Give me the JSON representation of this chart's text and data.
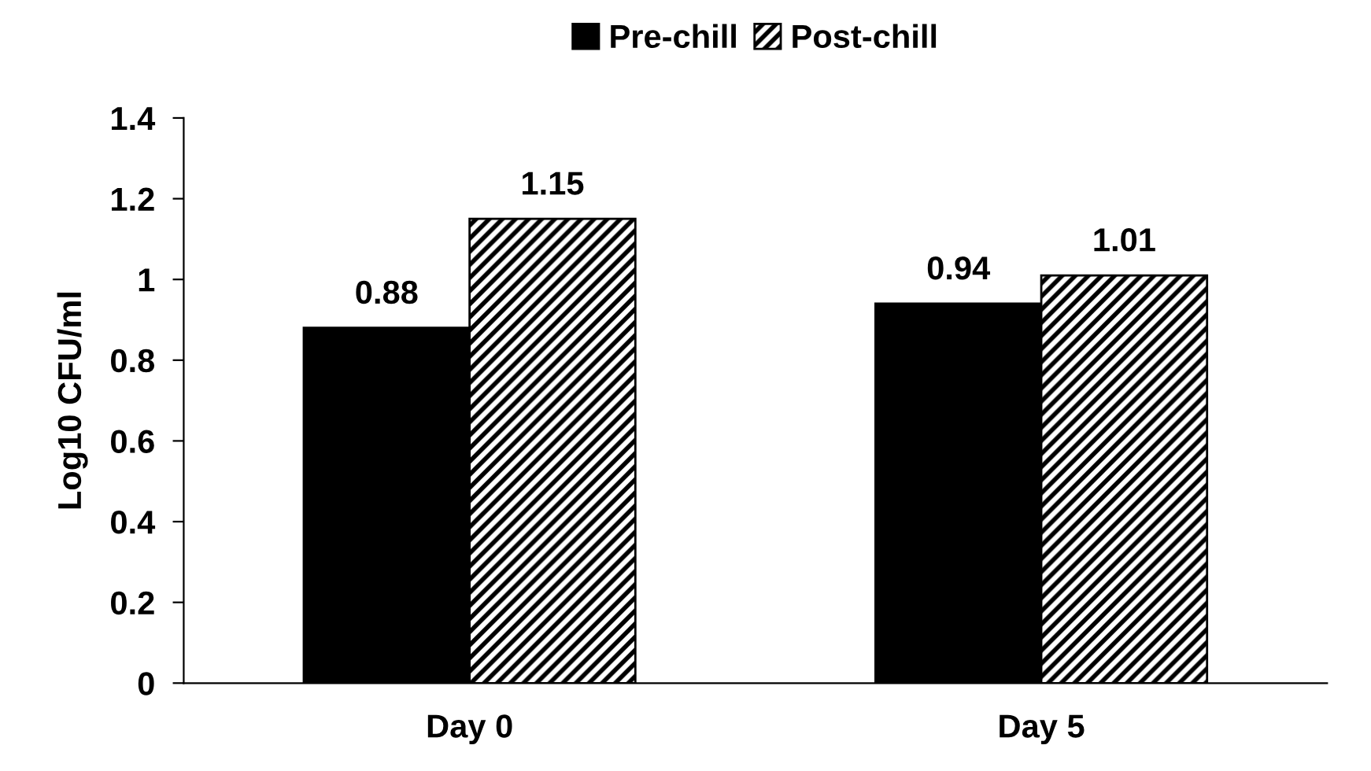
{
  "chart_data": {
    "type": "bar",
    "ylabel": "Log10 CFU/ml",
    "categories": [
      "Day 0",
      "Day 5"
    ],
    "series": [
      {
        "name": "Pre-chill",
        "color": "#000000",
        "values": [
          0.88,
          0.94
        ]
      },
      {
        "name": "Post-chill",
        "color": "#000000",
        "values": [
          1.15,
          1.01
        ]
      }
    ],
    "ylim": [
      0,
      1.4
    ],
    "yticks": [
      0,
      0.2,
      0.4,
      0.6,
      0.8,
      1,
      1.2,
      1.4
    ],
    "data_labels": true,
    "grid": false,
    "legend": "top"
  }
}
